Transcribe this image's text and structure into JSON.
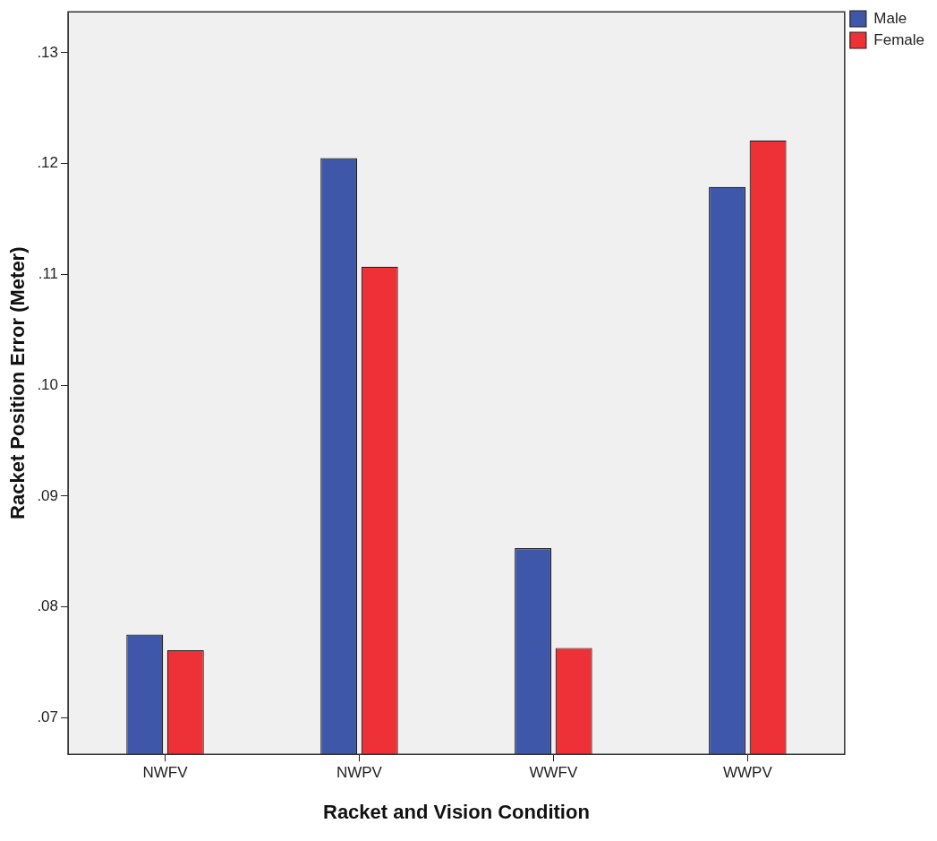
{
  "chart_data": {
    "type": "bar",
    "xlabel": "Racket and Vision Condition",
    "ylabel": "Racket Position Error (Meter)",
    "categories": [
      "NWFV",
      "NWPV",
      "WWFV",
      "WWPV"
    ],
    "series": [
      {
        "name": "Male",
        "color": "#3f57a8",
        "values": [
          0.0775,
          0.1205,
          0.0853,
          0.1179
        ]
      },
      {
        "name": "Female",
        "color": "#ee3137",
        "values": [
          0.0761,
          0.1107,
          0.0763,
          0.1221
        ]
      }
    ],
    "ylim": [
      0.0667,
      0.1337
    ],
    "yticks": [
      {
        "value": 0.07,
        "label": ".07"
      },
      {
        "value": 0.08,
        "label": ".08"
      },
      {
        "value": 0.09,
        "label": ".09"
      },
      {
        "value": 0.1,
        "label": ".10"
      },
      {
        "value": 0.11,
        "label": ".11"
      },
      {
        "value": 0.12,
        "label": ".12"
      },
      {
        "value": 0.13,
        "label": ".13"
      }
    ],
    "grid": false,
    "legend": "top right"
  }
}
